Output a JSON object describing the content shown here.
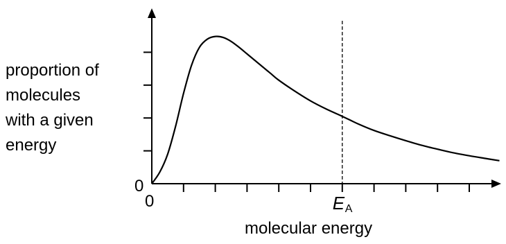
{
  "chart_data": {
    "type": "line",
    "ylabel_lines": [
      "proportion of",
      "molecules",
      "with a given",
      "energy"
    ],
    "xlabel": "molecular energy",
    "origin_y_label": "0",
    "origin_x_label": "0",
    "marker": {
      "label_main": "E",
      "label_sub": "A",
      "x": 6,
      "style": "dashed"
    },
    "xlim": [
      0,
      11
    ],
    "ylim": [
      0,
      5
    ],
    "x_ticks": [
      1,
      2,
      3,
      4,
      5,
      6,
      7,
      8,
      9,
      10
    ],
    "y_ticks": [
      1,
      2,
      3,
      4
    ],
    "series": [
      {
        "x": [
          0,
          0.25,
          0.5,
          0.75,
          1,
          1.25,
          1.5,
          1.75,
          2,
          2.25,
          2.5,
          2.75,
          3,
          3.25,
          3.5,
          3.75,
          4,
          4.5,
          5,
          5.5,
          6,
          6.5,
          7,
          7.5,
          8,
          8.5,
          9,
          9.5,
          10,
          10.5,
          10.95
        ],
        "values": [
          0,
          0.35,
          0.9,
          1.75,
          2.75,
          3.6,
          4.15,
          4.4,
          4.48,
          4.45,
          4.33,
          4.15,
          3.95,
          3.75,
          3.55,
          3.35,
          3.15,
          2.82,
          2.52,
          2.27,
          2.05,
          1.82,
          1.62,
          1.46,
          1.31,
          1.17,
          1.05,
          0.94,
          0.85,
          0.77,
          0.7
        ]
      }
    ],
    "grid": false
  }
}
